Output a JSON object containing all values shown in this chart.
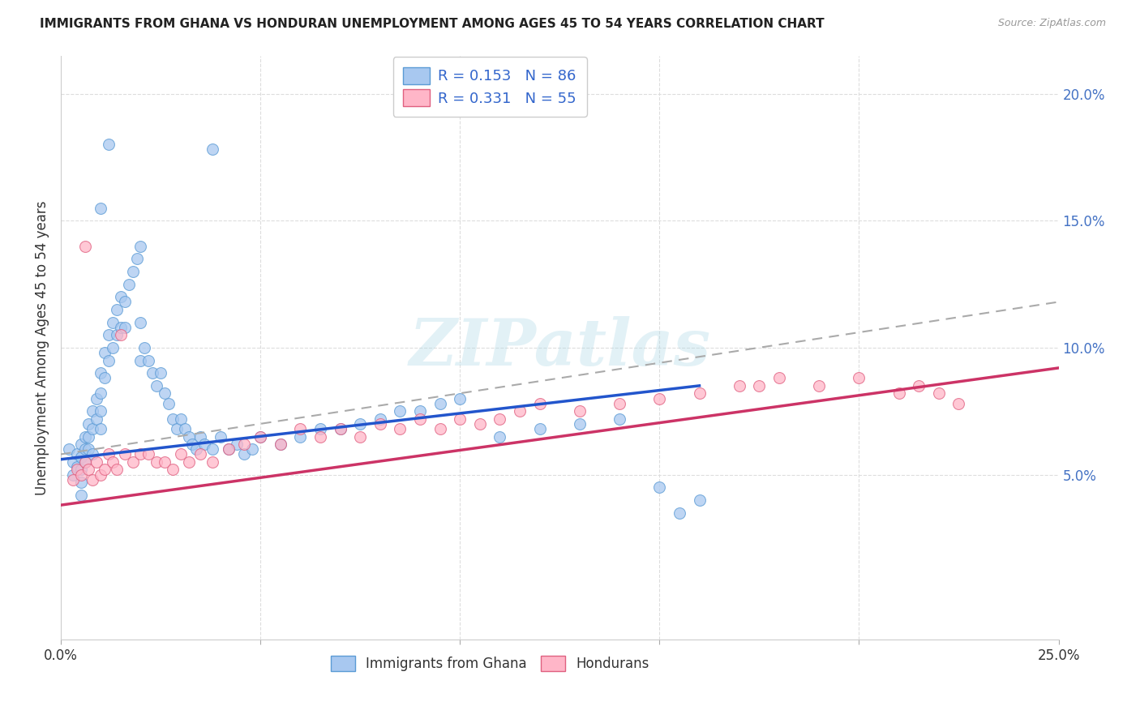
{
  "title": "IMMIGRANTS FROM GHANA VS HONDURAN UNEMPLOYMENT AMONG AGES 45 TO 54 YEARS CORRELATION CHART",
  "source": "Source: ZipAtlas.com",
  "ylabel": "Unemployment Among Ages 45 to 54 years",
  "xlim": [
    0.0,
    0.25
  ],
  "ylim": [
    -0.015,
    0.215
  ],
  "ghana_color": "#a8c8f0",
  "ghana_edge_color": "#5b9bd5",
  "honduran_color": "#ffb6c8",
  "honduran_edge_color": "#e06080",
  "ghana_line_color": "#2255cc",
  "honduran_line_color": "#cc3366",
  "trend_line_color": "#aaaaaa",
  "R_ghana": 0.153,
  "N_ghana": 86,
  "R_honduran": 0.331,
  "N_honduran": 55,
  "legend_label_ghana": "Immigrants from Ghana",
  "legend_label_honduran": "Hondurans",
  "watermark": "ZIPatlas",
  "background_color": "#ffffff",
  "grid_color": "#dddddd",
  "ghana_line_x0": 0.0,
  "ghana_line_y0": 0.056,
  "ghana_line_x1": 0.16,
  "ghana_line_y1": 0.085,
  "honduran_line_x0": 0.0,
  "honduran_line_y0": 0.038,
  "honduran_line_x1": 0.25,
  "honduran_line_y1": 0.092,
  "dashed_line_x0": 0.0,
  "dashed_line_y0": 0.058,
  "dashed_line_x1": 0.25,
  "dashed_line_y1": 0.118,
  "ghana_scatter_x": [
    0.002,
    0.003,
    0.003,
    0.004,
    0.004,
    0.005,
    0.005,
    0.005,
    0.005,
    0.005,
    0.006,
    0.006,
    0.006,
    0.007,
    0.007,
    0.007,
    0.008,
    0.008,
    0.008,
    0.009,
    0.009,
    0.01,
    0.01,
    0.01,
    0.01,
    0.011,
    0.011,
    0.012,
    0.012,
    0.013,
    0.013,
    0.014,
    0.014,
    0.015,
    0.015,
    0.016,
    0.016,
    0.017,
    0.018,
    0.019,
    0.02,
    0.02,
    0.021,
    0.022,
    0.023,
    0.024,
    0.025,
    0.026,
    0.027,
    0.028,
    0.029,
    0.03,
    0.031,
    0.032,
    0.033,
    0.034,
    0.035,
    0.036,
    0.038,
    0.04,
    0.042,
    0.044,
    0.046,
    0.048,
    0.05,
    0.055,
    0.06,
    0.065,
    0.07,
    0.075,
    0.08,
    0.085,
    0.09,
    0.095,
    0.1,
    0.11,
    0.12,
    0.13,
    0.14,
    0.15,
    0.155,
    0.16,
    0.012,
    0.038,
    0.01,
    0.02
  ],
  "ghana_scatter_y": [
    0.06,
    0.055,
    0.05,
    0.058,
    0.053,
    0.062,
    0.057,
    0.052,
    0.047,
    0.042,
    0.065,
    0.06,
    0.055,
    0.07,
    0.065,
    0.06,
    0.075,
    0.068,
    0.058,
    0.08,
    0.072,
    0.09,
    0.082,
    0.075,
    0.068,
    0.098,
    0.088,
    0.105,
    0.095,
    0.11,
    0.1,
    0.115,
    0.105,
    0.12,
    0.108,
    0.118,
    0.108,
    0.125,
    0.13,
    0.135,
    0.11,
    0.095,
    0.1,
    0.095,
    0.09,
    0.085,
    0.09,
    0.082,
    0.078,
    0.072,
    0.068,
    0.072,
    0.068,
    0.065,
    0.062,
    0.06,
    0.065,
    0.062,
    0.06,
    0.065,
    0.06,
    0.062,
    0.058,
    0.06,
    0.065,
    0.062,
    0.065,
    0.068,
    0.068,
    0.07,
    0.072,
    0.075,
    0.075,
    0.078,
    0.08,
    0.065,
    0.068,
    0.07,
    0.072,
    0.045,
    0.035,
    0.04,
    0.18,
    0.178,
    0.155,
    0.14
  ],
  "honduran_scatter_x": [
    0.003,
    0.004,
    0.005,
    0.006,
    0.007,
    0.008,
    0.009,
    0.01,
    0.011,
    0.012,
    0.013,
    0.014,
    0.016,
    0.018,
    0.02,
    0.022,
    0.024,
    0.026,
    0.028,
    0.03,
    0.032,
    0.035,
    0.038,
    0.042,
    0.046,
    0.05,
    0.055,
    0.06,
    0.065,
    0.07,
    0.075,
    0.08,
    0.085,
    0.09,
    0.095,
    0.1,
    0.105,
    0.11,
    0.115,
    0.12,
    0.13,
    0.14,
    0.15,
    0.16,
    0.17,
    0.175,
    0.18,
    0.19,
    0.2,
    0.21,
    0.215,
    0.22,
    0.225,
    0.006,
    0.015
  ],
  "honduran_scatter_y": [
    0.048,
    0.052,
    0.05,
    0.055,
    0.052,
    0.048,
    0.055,
    0.05,
    0.052,
    0.058,
    0.055,
    0.052,
    0.058,
    0.055,
    0.058,
    0.058,
    0.055,
    0.055,
    0.052,
    0.058,
    0.055,
    0.058,
    0.055,
    0.06,
    0.062,
    0.065,
    0.062,
    0.068,
    0.065,
    0.068,
    0.065,
    0.07,
    0.068,
    0.072,
    0.068,
    0.072,
    0.07,
    0.072,
    0.075,
    0.078,
    0.075,
    0.078,
    0.08,
    0.082,
    0.085,
    0.085,
    0.088,
    0.085,
    0.088,
    0.082,
    0.085,
    0.082,
    0.078,
    0.14,
    0.105
  ]
}
